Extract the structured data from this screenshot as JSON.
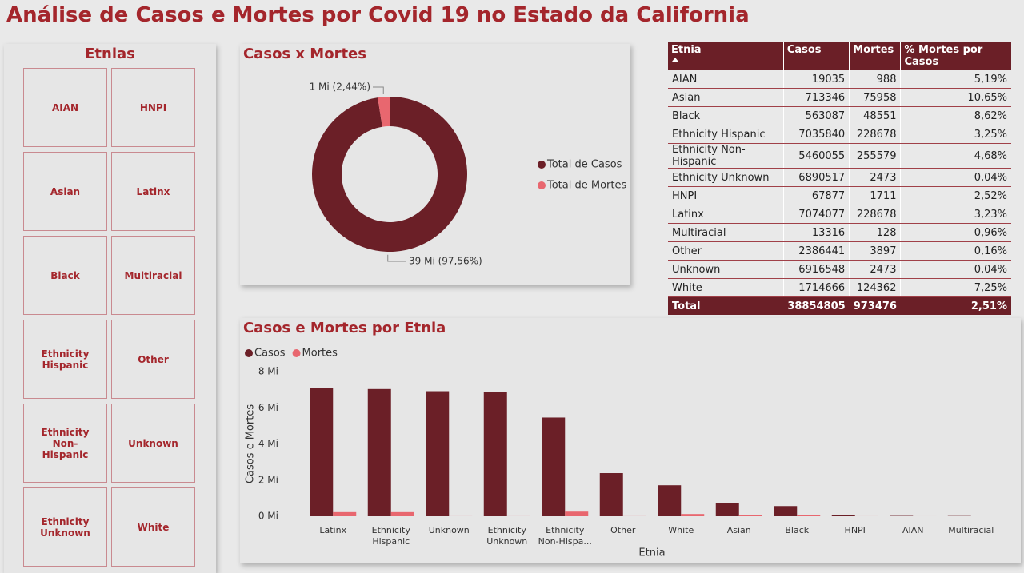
{
  "title": "Análise de Casos e Mortes por Covid 19 no Estado da California",
  "slicer": {
    "title": "Etnias",
    "items": [
      "AIAN",
      "HNPI",
      "Asian",
      "Latinx",
      "Black",
      "Multiracial",
      "Ethnicity Hispanic",
      "Other",
      "Ethnicity Non-Hispanic",
      "Unknown",
      "Ethnicity Unknown",
      "White"
    ]
  },
  "table": {
    "columns": [
      "Etnia",
      "Casos",
      "Mortes",
      "% Mortes por Casos"
    ],
    "rows": [
      [
        "AIAN",
        19035,
        988,
        "5,19%"
      ],
      [
        "Asian",
        713346,
        75958,
        "10,65%"
      ],
      [
        "Black",
        563087,
        48551,
        "8,62%"
      ],
      [
        "Ethnicity Hispanic",
        7035840,
        228678,
        "3,25%"
      ],
      [
        "Ethnicity Non-Hispanic",
        5460055,
        255579,
        "4,68%"
      ],
      [
        "Ethnicity Unknown",
        6890517,
        2473,
        "0,04%"
      ],
      [
        "HNPI",
        67877,
        1711,
        "2,52%"
      ],
      [
        "Latinx",
        7074077,
        228678,
        "3,23%"
      ],
      [
        "Multiracial",
        13316,
        128,
        "0,96%"
      ],
      [
        "Other",
        2386441,
        3897,
        "0,16%"
      ],
      [
        "Unknown",
        6916548,
        2473,
        "0,04%"
      ],
      [
        "White",
        1714666,
        124362,
        "7,25%"
      ]
    ],
    "total": [
      "Total",
      38854805,
      973476,
      "2,51%"
    ]
  },
  "chart_data": [
    {
      "type": "pie",
      "title": "Casos x Mortes",
      "donut": true,
      "categories": [
        "Total de Casos",
        "Total de Mortes"
      ],
      "values": [
        38854805,
        973476
      ],
      "value_labels": [
        "39 Mi (97,56%)",
        "1 Mi (2,44%)"
      ],
      "colors": [
        "#6b1f27",
        "#e8676f"
      ],
      "legend": "right"
    },
    {
      "type": "bar",
      "title": "Casos e Mortes por Etnia",
      "categories": [
        "Latinx",
        "Ethnicity Hispanic",
        "Unknown",
        "Ethnicity Unknown",
        "Ethnicity Non-Hispa...",
        "Other",
        "White",
        "Asian",
        "Black",
        "HNPI",
        "AIAN",
        "Multiracial"
      ],
      "series": [
        {
          "name": "Casos",
          "color": "#6b1f27",
          "values": [
            7074077,
            7035840,
            6916548,
            6890517,
            5460055,
            2386441,
            1714666,
            713346,
            563087,
            67877,
            19035,
            13316
          ]
        },
        {
          "name": "Mortes",
          "color": "#e8676f",
          "values": [
            228678,
            228678,
            2473,
            2473,
            255579,
            3897,
            124362,
            75958,
            48551,
            1711,
            988,
            128
          ]
        }
      ],
      "xlabel": "Etnia",
      "ylabel": "Casos e Mortes",
      "ylim": [
        0,
        8000000
      ],
      "yticks": [
        {
          "value": 0,
          "label": "0 Mi"
        },
        {
          "value": 2000000,
          "label": "2 Mi"
        },
        {
          "value": 4000000,
          "label": "4 Mi"
        },
        {
          "value": 6000000,
          "label": "6 Mi"
        },
        {
          "value": 8000000,
          "label": "8 Mi"
        }
      ],
      "legend": "top-left",
      "grid": false
    }
  ]
}
